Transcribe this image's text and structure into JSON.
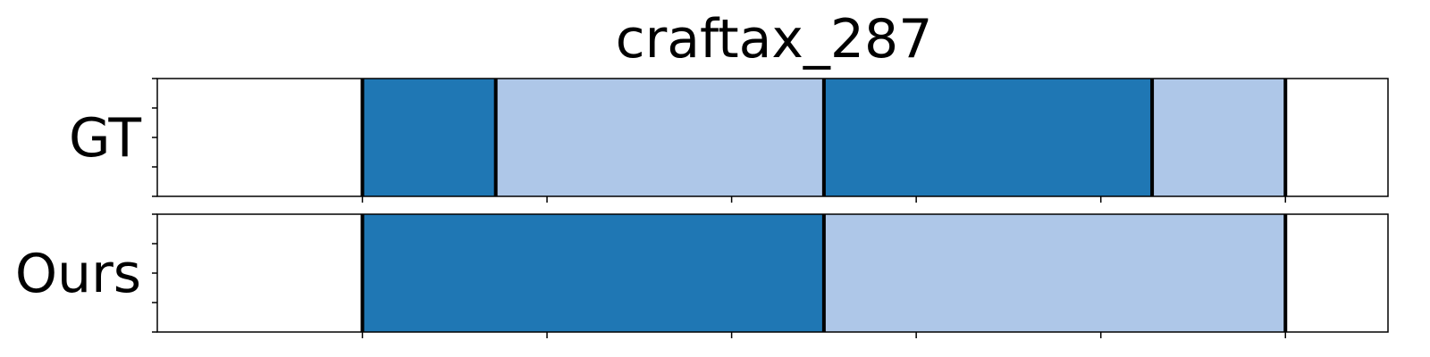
{
  "chart_data": {
    "type": "bar",
    "title": "craftax_287",
    "xlim": [
      0,
      1
    ],
    "rows": [
      {
        "label": "GT",
        "segments": [
          {
            "start": 0.0,
            "end": 0.2,
            "color": "#ffffff"
          },
          {
            "start": 0.2,
            "end": 0.33,
            "color": "#1f77b4"
          },
          {
            "start": 0.33,
            "end": 0.65,
            "color": "#aec7e8"
          },
          {
            "start": 0.65,
            "end": 0.97,
            "color": "#1f77b4"
          },
          {
            "start": 0.97,
            "end": 1.1,
            "color": "#aec7e8"
          },
          {
            "start": 1.1,
            "end": 1.2,
            "color": "#ffffff"
          }
        ],
        "boundaries": [
          0.2,
          0.33,
          0.65,
          0.97,
          1.1
        ]
      },
      {
        "label": "Ours",
        "segments": [
          {
            "start": 0.0,
            "end": 0.2,
            "color": "#ffffff"
          },
          {
            "start": 0.2,
            "end": 0.65,
            "color": "#1f77b4"
          },
          {
            "start": 0.65,
            "end": 1.1,
            "color": "#aec7e8"
          },
          {
            "start": 1.1,
            "end": 1.2,
            "color": "#ffffff"
          }
        ],
        "boundaries": [
          0.2,
          0.65,
          1.1
        ]
      }
    ],
    "x_range": [
      0,
      1.2
    ],
    "x_ticks": [
      0.2,
      0.38,
      0.56,
      0.74,
      0.92,
      1.1
    ],
    "y_ticks_per_row": 5,
    "colors": {
      "dark": "#1f77b4",
      "light": "#aec7e8",
      "boundary": "#000000"
    }
  }
}
